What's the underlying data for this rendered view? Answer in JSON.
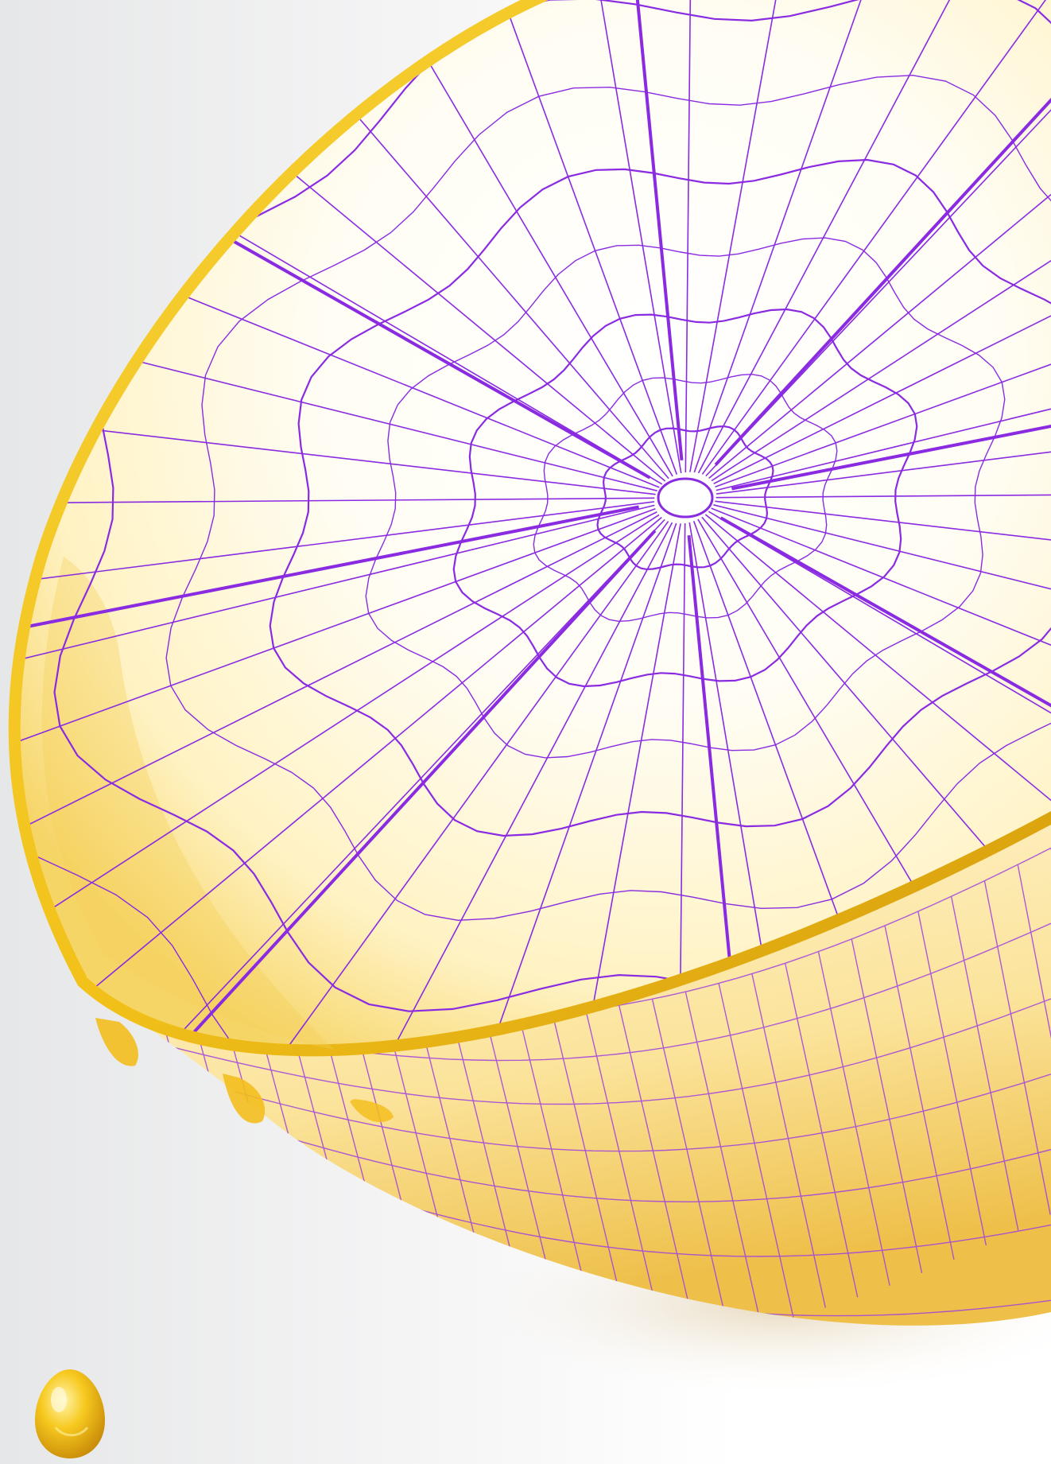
{
  "image": {
    "subject": "lemon-half-with-wireframe-overlay",
    "colors": {
      "background_light": "#ffffff",
      "background_grey": "#e6e7e8",
      "peel_yellow": "#f2c21a",
      "peel_deep": "#e0a90e",
      "flesh_cream": "#fff4cc",
      "flesh_light": "#fffdf3",
      "wireframe_purple": "#8a2be2",
      "drop_gold": "#f7c91f"
    },
    "wireframe": {
      "segments": 8,
      "radial_lines": 44,
      "rings": 7
    }
  }
}
